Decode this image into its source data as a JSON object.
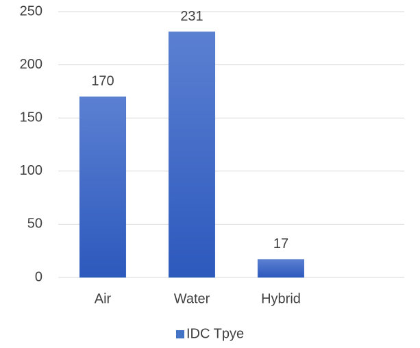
{
  "chart_data": {
    "type": "bar",
    "categories": [
      "Air",
      "Water",
      "Hybrid",
      null
    ],
    "series": [
      {
        "name": "IDC Tpye",
        "color": "#4472c4",
        "values": [
          170,
          231,
          17,
          null
        ]
      }
    ],
    "ylim": [
      0,
      250
    ],
    "yticks": [
      0,
      50,
      100,
      150,
      200,
      250
    ],
    "grid": true,
    "legend": "bottom",
    "data_labels": true
  }
}
